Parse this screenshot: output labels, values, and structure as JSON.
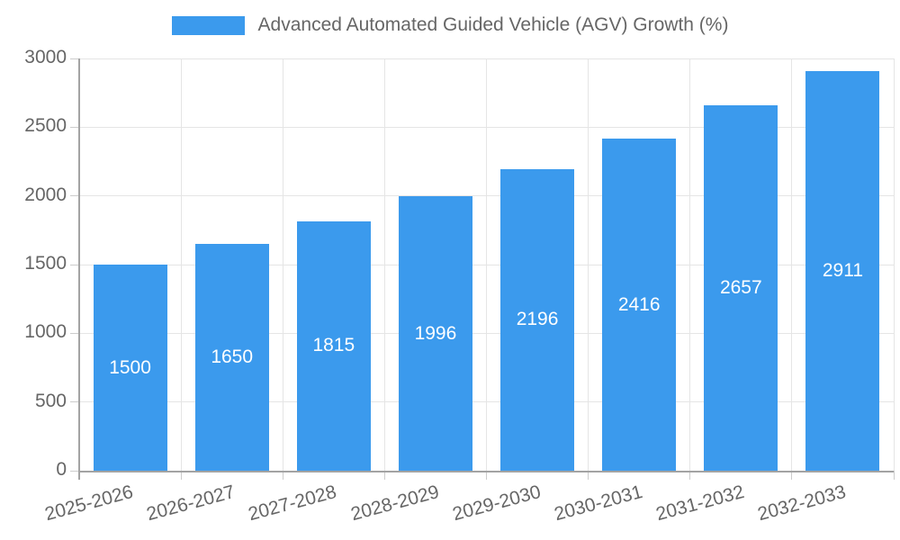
{
  "chart_data": {
    "type": "bar",
    "title": "Advanced Automated Guided Vehicle (AGV) Growth (%)",
    "categories": [
      "2025-2026",
      "2026-2027",
      "2027-2028",
      "2028-2029",
      "2029-2030",
      "2030-2031",
      "2031-2032",
      "2032-2033"
    ],
    "values": [
      1500,
      1650,
      1815,
      1996,
      2196,
      2416,
      2657,
      2911
    ],
    "series_name": "Advanced Automated Guided Vehicle (AGV) Growth (%)",
    "xlabel": "",
    "ylabel": "",
    "ylim": [
      0,
      3000
    ],
    "yticks": [
      0,
      500,
      1000,
      1500,
      2000,
      2500,
      3000
    ],
    "grid": true,
    "legend_position": "top",
    "colors": {
      "bar_fill": "#3b9aed",
      "bar_value_text": "#ffffff",
      "tick_text": "#666666",
      "gridline": "#e5e5e5",
      "axis_line": "#a3a3a3"
    }
  }
}
